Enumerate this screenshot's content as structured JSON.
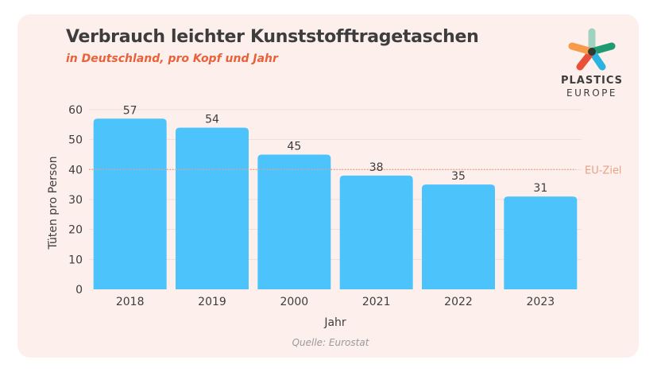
{
  "title": "Verbrauch leichter Kunststofftragetaschen",
  "subtitle": "in Deutschland, pro Kopf und Jahr",
  "logo": {
    "line1": "PLASTICS",
    "line2": "EUROPE",
    "colors": [
      "#9fd3c0",
      "#1f9a72",
      "#2ab3e0",
      "#e8503a",
      "#f79a4a",
      "#2f3a33"
    ]
  },
  "source": "Quelle: Eurostat",
  "colors": {
    "bar": "#4dc3fb",
    "reference_line": "#e8a08a",
    "background": "#fdf0ec"
  },
  "chart_data": {
    "type": "bar",
    "categories": [
      "2018",
      "2019",
      "2000",
      "2021",
      "2022",
      "2023"
    ],
    "values": [
      57,
      54,
      45,
      38,
      35,
      31
    ],
    "xlabel": "Jahr",
    "ylabel": "Tüten pro Person",
    "ylim": [
      0,
      60
    ],
    "yticks": [
      0,
      10,
      20,
      30,
      40,
      50,
      60
    ],
    "grid": true,
    "data_labels": true,
    "reference_line": {
      "value": 40,
      "label": "EU-Ziel",
      "style": "dotted"
    }
  }
}
